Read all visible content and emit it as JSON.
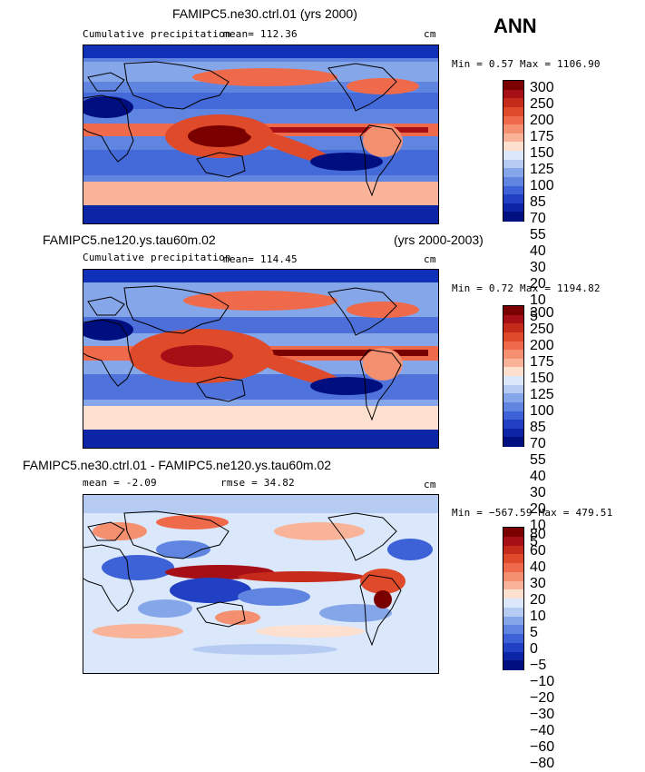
{
  "header": {
    "season": "ANN"
  },
  "panels": [
    {
      "title": "FAMIPC5.ne30.ctrl.01 (yrs 2000)",
      "subtitle_left": "Cumulative precipitation",
      "mean_text": "mean= 112.36",
      "units": "cm",
      "minmax_text": "Min =   0.57 Max = 1106.90",
      "colorbar": {
        "labels": [
          "300",
          "250",
          "200",
          "175",
          "150",
          "125",
          "100",
          "85",
          "70",
          "55",
          "40",
          "30",
          "20",
          "10",
          "5"
        ],
        "colors": [
          "#7a0000",
          "#a50f15",
          "#c62a1a",
          "#de4a2a",
          "#ef6a4b",
          "#f4906f",
          "#f8b399",
          "#fde0cf",
          "#dbe8fb",
          "#b6cbf2",
          "#86a6ea",
          "#5f85e0",
          "#3d61d6",
          "#2240c4",
          "#0c24a6",
          "#000f80"
        ]
      }
    },
    {
      "title_left": "FAMIPC5.ne120.ys.tau60m.02",
      "title_right": "(yrs 2000-2003)",
      "subtitle_left": "Cumulative precipitation",
      "mean_text": "mean= 114.45",
      "units": "cm",
      "minmax_text": "Min =   0.72 Max = 1194.82",
      "colorbar": {
        "labels": [
          "300",
          "250",
          "200",
          "175",
          "150",
          "125",
          "100",
          "85",
          "70",
          "55",
          "40",
          "30",
          "20",
          "10",
          "5"
        ],
        "colors": [
          "#7a0000",
          "#a50f15",
          "#c62a1a",
          "#de4a2a",
          "#ef6a4b",
          "#f4906f",
          "#f8b399",
          "#fde0cf",
          "#dbe8fb",
          "#b6cbf2",
          "#86a6ea",
          "#5f85e0",
          "#3d61d6",
          "#2240c4",
          "#0c24a6",
          "#000f80"
        ]
      }
    },
    {
      "title": "FAMIPC5.ne30.ctrl.01 - FAMIPC5.ne120.ys.tau60m.02",
      "mean_text": "mean =   -2.09",
      "rmse_text": "rmse =   34.82",
      "units": "cm",
      "minmax_text": "Min = −567.59 Max =  479.51",
      "colorbar": {
        "labels": [
          "80",
          "60",
          "40",
          "30",
          "20",
          "10",
          "5",
          "0",
          "−5",
          "−10",
          "−20",
          "−30",
          "−40",
          "−60",
          "−80"
        ],
        "colors": [
          "#7a0000",
          "#a50f15",
          "#c62a1a",
          "#de4a2a",
          "#ef6a4b",
          "#f4906f",
          "#f8b399",
          "#fde0cf",
          "#dbe8fb",
          "#b6cbf2",
          "#86a6ea",
          "#5f85e0",
          "#3d61d6",
          "#2240c4",
          "#0c24a6",
          "#000f80"
        ]
      }
    }
  ],
  "chart_data": [
    {
      "type": "heatmap",
      "title": "FAMIPC5.ne30.ctrl.01 (yrs 2000)",
      "variable": "Cumulative precipitation",
      "units": "cm",
      "mean": 112.36,
      "min": 0.57,
      "max": 1106.9,
      "contour_levels": [
        5,
        10,
        20,
        30,
        40,
        55,
        70,
        85,
        100,
        125,
        150,
        175,
        200,
        250,
        300
      ]
    },
    {
      "type": "heatmap",
      "title": "FAMIPC5.ne120.ys.tau60m.02 (yrs 2000-2003)",
      "variable": "Cumulative precipitation",
      "units": "cm",
      "mean": 114.45,
      "min": 0.72,
      "max": 1194.82,
      "contour_levels": [
        5,
        10,
        20,
        30,
        40,
        55,
        70,
        85,
        100,
        125,
        150,
        175,
        200,
        250,
        300
      ]
    },
    {
      "type": "heatmap",
      "title": "FAMIPC5.ne30.ctrl.01 - FAMIPC5.ne120.ys.tau60m.02",
      "units": "cm",
      "mean": -2.09,
      "rmse": 34.82,
      "min": -567.59,
      "max": 479.51,
      "contour_levels": [
        -80,
        -60,
        -40,
        -30,
        -20,
        -10,
        -5,
        0,
        5,
        10,
        20,
        30,
        40,
        60,
        80
      ]
    }
  ]
}
